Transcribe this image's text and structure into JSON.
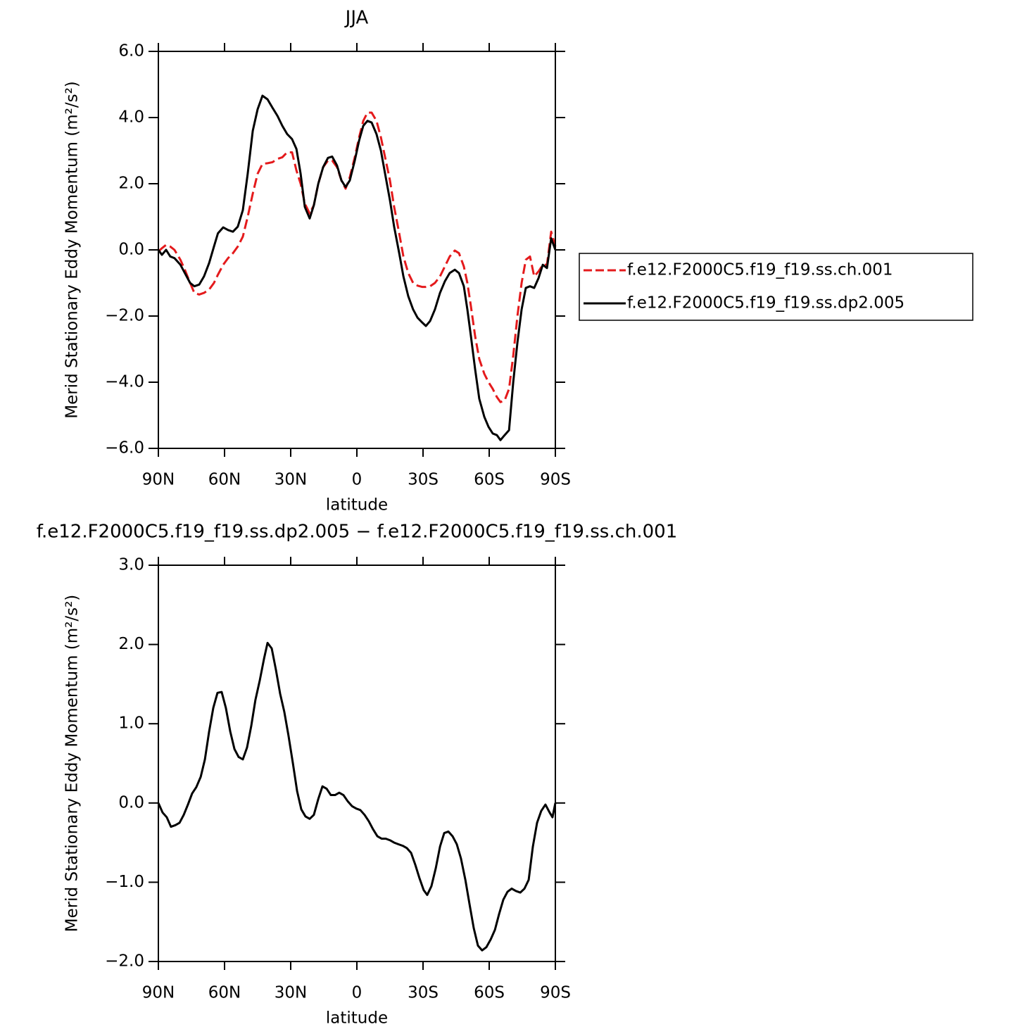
{
  "chart_data": [
    {
      "type": "line",
      "title": "JJA",
      "xlabel": "latitude",
      "ylabel": "Merid Stationary Eddy Momentum (m²/s²)",
      "xlim": [
        90,
        -90
      ],
      "ylim": [
        -6,
        6
      ],
      "xticks": [
        {
          "value": 90,
          "label": "90N"
        },
        {
          "value": 60,
          "label": "60N"
        },
        {
          "value": 30,
          "label": "30N"
        },
        0,
        {
          "value": -30,
          "label": "30S"
        },
        {
          "value": -60,
          "label": "60S"
        },
        {
          "value": -90,
          "label": "90S"
        }
      ],
      "yticks": [
        {
          "value": 6,
          "label": "6.0"
        },
        {
          "value": 4,
          "label": "4.0"
        },
        {
          "value": 2,
          "label": "2.0"
        },
        {
          "value": 0,
          "label": "0.0"
        },
        {
          "value": -2,
          "label": "−2.0"
        },
        {
          "value": -4,
          "label": "−4.0"
        },
        {
          "value": -6,
          "label": "−6.0"
        }
      ],
      "legend": "right",
      "x": [
        90,
        88.4,
        86.5,
        84.6,
        82.7,
        80,
        78,
        75.6,
        73.7,
        71.5,
        69.3,
        67,
        64.8,
        63,
        60.6,
        58.4,
        56.2,
        54,
        51.7,
        49.5,
        47.2,
        45,
        42.8,
        40.5,
        38.3,
        36,
        33.8,
        31.6,
        29.4,
        27.4,
        25.5,
        23.6,
        21.4,
        19.5,
        17.5,
        15.3,
        13.1,
        11.2,
        9,
        7,
        5.1,
        3.2,
        0.95,
        -1,
        -2.9,
        -4.8,
        -6.7,
        -8.9,
        -10.9,
        -12.8,
        -15,
        -16.9,
        -19.2,
        -21.1,
        -23.3,
        -25.5,
        -27.5,
        -29.7,
        -31.3,
        -33.2,
        -35.4,
        -37.7,
        -39.9,
        -42.1,
        -44.4,
        -46.3,
        -48.5,
        -50.1,
        -51.7,
        -53.6,
        -55.5,
        -57.8,
        -59.7,
        -61.6,
        -63.5,
        -65.1,
        -67,
        -69,
        -70.9,
        -72.8,
        -74.7,
        -76.6,
        -78.5,
        -80.4,
        -82.4,
        -84.3,
        -86.2,
        -88.1,
        -90
      ],
      "series": [
        {
          "name": "f.e12.F2000C5.f19_f19.ss.ch.001",
          "color": "#e41a1c",
          "linestyle": "dashed",
          "values": [
            -0.05,
            0.05,
            0.15,
            0.1,
            0.0,
            -0.3,
            -0.6,
            -1.0,
            -1.3,
            -1.35,
            -1.3,
            -1.2,
            -1.0,
            -0.75,
            -0.45,
            -0.25,
            -0.1,
            0.1,
            0.4,
            1.0,
            1.7,
            2.3,
            2.6,
            2.62,
            2.65,
            2.75,
            2.8,
            2.95,
            2.95,
            2.4,
            2.0,
            1.4,
            1.1,
            1.35,
            2.0,
            2.5,
            2.7,
            2.7,
            2.5,
            2.1,
            1.85,
            2.2,
            2.8,
            3.4,
            3.9,
            4.15,
            4.15,
            3.9,
            3.4,
            2.8,
            2.1,
            1.3,
            0.5,
            -0.2,
            -0.7,
            -1.0,
            -1.08,
            -1.12,
            -1.12,
            -1.1,
            -1.0,
            -0.8,
            -0.5,
            -0.2,
            -0.02,
            -0.1,
            -0.5,
            -1.0,
            -1.7,
            -2.6,
            -3.3,
            -3.75,
            -4.0,
            -4.2,
            -4.45,
            -4.6,
            -4.55,
            -4.2,
            -3.2,
            -2.0,
            -1.0,
            -0.3,
            -0.2,
            -0.8,
            -0.65,
            -0.45,
            -0.45,
            0.55,
            0.1
          ]
        },
        {
          "name": "f.e12.F2000C5.f19_f19.ss.dp2.005",
          "color": "#000000",
          "linestyle": "solid",
          "values": [
            0.0,
            -0.15,
            0.0,
            -0.2,
            -0.25,
            -0.45,
            -0.7,
            -1.0,
            -1.1,
            -1.05,
            -0.8,
            -0.4,
            0.1,
            0.5,
            0.68,
            0.6,
            0.55,
            0.7,
            1.2,
            2.3,
            3.6,
            4.25,
            4.66,
            4.55,
            4.3,
            4.05,
            3.75,
            3.5,
            3.35,
            3.05,
            2.3,
            1.3,
            0.95,
            1.35,
            2.0,
            2.5,
            2.78,
            2.82,
            2.55,
            2.1,
            1.9,
            2.1,
            2.7,
            3.3,
            3.75,
            3.9,
            3.85,
            3.5,
            3.0,
            2.3,
            1.5,
            0.7,
            -0.1,
            -0.8,
            -1.4,
            -1.8,
            -2.05,
            -2.2,
            -2.3,
            -2.15,
            -1.8,
            -1.3,
            -0.95,
            -0.7,
            -0.6,
            -0.7,
            -1.1,
            -1.8,
            -2.6,
            -3.6,
            -4.5,
            -5.05,
            -5.35,
            -5.55,
            -5.6,
            -5.75,
            -5.6,
            -5.45,
            -4.0,
            -2.8,
            -1.8,
            -1.15,
            -1.1,
            -1.15,
            -0.85,
            -0.45,
            -0.55,
            0.35,
            0.0
          ]
        }
      ]
    },
    {
      "type": "line",
      "title": "f.e12.F2000C5.f19_f19.ss.dp2.005 − f.e12.F2000C5.f19_f19.ss.ch.001",
      "xlabel": "latitude",
      "ylabel": "Merid Stationary Eddy Momentum (m²/s²)",
      "xlim": [
        90,
        -90
      ],
      "ylim": [
        -2,
        3
      ],
      "xticks": [
        {
          "value": 90,
          "label": "90N"
        },
        {
          "value": 60,
          "label": "60N"
        },
        {
          "value": 30,
          "label": "30N"
        },
        0,
        {
          "value": -30,
          "label": "30S"
        },
        {
          "value": -60,
          "label": "60S"
        },
        {
          "value": -90,
          "label": "90S"
        }
      ],
      "yticks": [
        {
          "value": 3,
          "label": "3.0"
        },
        {
          "value": 2,
          "label": "2.0"
        },
        {
          "value": 1,
          "label": "1.0"
        },
        {
          "value": 0,
          "label": "0.0"
        },
        {
          "value": -1,
          "label": "−1.0"
        },
        {
          "value": -2,
          "label": "−2.0"
        }
      ],
      "x": [
        90,
        88.1,
        86.2,
        84.3,
        82.3,
        80.4,
        78.5,
        76.6,
        74.7,
        72.8,
        70.8,
        68.9,
        67,
        65.1,
        63.2,
        61.3,
        59.4,
        57.4,
        55.5,
        53.6,
        51.7,
        49.8,
        47.9,
        46,
        44,
        42.1,
        40.5,
        38.6,
        36.7,
        34.8,
        32.9,
        31,
        29,
        27.1,
        25.2,
        23.3,
        21.4,
        19.5,
        17.5,
        15.6,
        13.7,
        11.8,
        9.9,
        8,
        6.1,
        4.1,
        2.2,
        0.3,
        -1.6,
        -3.5,
        -5.4,
        -7.3,
        -9.3,
        -11.2,
        -13.1,
        -15,
        -16.9,
        -18.8,
        -20.8,
        -22.7,
        -24.6,
        -26.5,
        -28.4,
        -30.3,
        -31.9,
        -33.8,
        -35.8,
        -37.7,
        -39.6,
        -41.5,
        -43.4,
        -45.3,
        -47.2,
        -49.2,
        -51.1,
        -53,
        -54.9,
        -56.8,
        -58.7,
        -60.7,
        -62.6,
        -64.5,
        -66.4,
        -68.3,
        -70.2,
        -72.1,
        -74.1,
        -76,
        -77.9,
        -79.8,
        -81.7,
        -83.6,
        -85.5,
        -87.4,
        -88.7,
        -90
      ],
      "series": [
        {
          "name": "f.e12.F2000C5.f19_f19.ss.dp2.005 − f.e12.F2000C5.f19_f19.ss.ch.001",
          "color": "#000000",
          "linestyle": "solid",
          "show_legend": false,
          "values": [
            0.0,
            -0.12,
            -0.18,
            -0.3,
            -0.28,
            -0.25,
            -0.15,
            -0.02,
            0.12,
            0.2,
            0.33,
            0.55,
            0.9,
            1.2,
            1.39,
            1.4,
            1.2,
            0.9,
            0.68,
            0.58,
            0.55,
            0.7,
            0.97,
            1.3,
            1.55,
            1.82,
            2.02,
            1.95,
            1.68,
            1.38,
            1.15,
            0.85,
            0.5,
            0.15,
            -0.08,
            -0.17,
            -0.2,
            -0.15,
            0.05,
            0.21,
            0.18,
            0.1,
            0.1,
            0.13,
            0.1,
            0.02,
            -0.04,
            -0.07,
            -0.09,
            -0.15,
            -0.23,
            -0.33,
            -0.42,
            -0.45,
            -0.45,
            -0.47,
            -0.5,
            -0.52,
            -0.54,
            -0.57,
            -0.63,
            -0.78,
            -0.95,
            -1.1,
            -1.16,
            -1.05,
            -0.82,
            -0.55,
            -0.38,
            -0.36,
            -0.42,
            -0.52,
            -0.7,
            -0.97,
            -1.28,
            -1.58,
            -1.8,
            -1.86,
            -1.82,
            -1.72,
            -1.6,
            -1.4,
            -1.22,
            -1.12,
            -1.08,
            -1.11,
            -1.13,
            -1.08,
            -0.97,
            -0.55,
            -0.25,
            -0.1,
            -0.02,
            -0.12,
            -0.18,
            0.0
          ]
        }
      ]
    }
  ]
}
